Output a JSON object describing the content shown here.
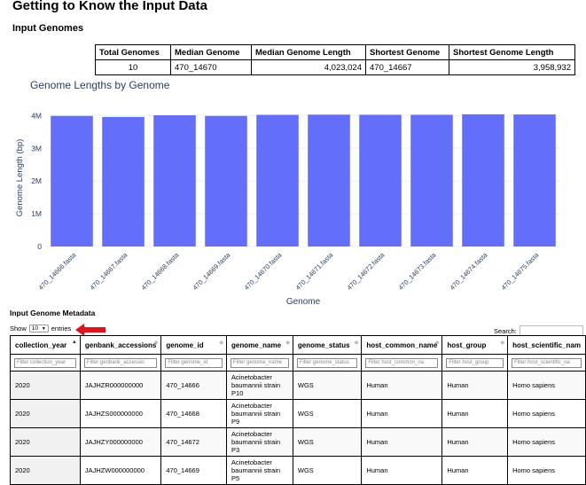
{
  "page": {
    "title": "Getting to Know the Input Data",
    "input_genomes_heading": "Input Genomes",
    "metadata_heading": "Input Genome Metadata"
  },
  "summary": {
    "headers": [
      "Total Genomes",
      "Median Genome",
      "Median Genome Length",
      "Shortest Genome",
      "Shortest Genome Length"
    ],
    "values": [
      "10",
      "470_14670",
      "4,023,024",
      "470_14667",
      "3,958,932"
    ]
  },
  "chart_data": {
    "type": "bar",
    "title": "Genome Lengths by Genome",
    "xlabel": "Genome",
    "ylabel": "Genome Length (bp)",
    "categories": [
      "470_14666.fasta",
      "470_14667.fasta",
      "470_14668.fasta",
      "470_14669.fasta",
      "470_14670.fasta",
      "470_14671.fasta",
      "470_14672.fasta",
      "470_14673.fasta",
      "470_14674.fasta",
      "470_14675.fasta"
    ],
    "values": [
      3990000,
      3958932,
      4010000,
      3990000,
      4023024,
      4030000,
      4025000,
      4025000,
      4040000,
      4035000
    ],
    "ylim": [
      0,
      4200000
    ],
    "yticks": [
      0,
      1000000,
      2000000,
      3000000,
      4000000
    ],
    "ytick_labels": [
      "0",
      "1M",
      "2M",
      "3M",
      "4M"
    ],
    "bar_color": "#636efa",
    "grid": true
  },
  "table_controls": {
    "show_label": "Show",
    "entries_value": "10",
    "entries_label": "entries",
    "search_label": "Search:"
  },
  "metadata": {
    "columns": [
      "collection_year",
      "genbank_accessions",
      "genome_id",
      "genome_name",
      "genome_status",
      "host_common_name",
      "host_group",
      "host_scientific_nam"
    ],
    "filters": [
      "Filter collection_year",
      "Filter genbank_accessio",
      "Filter genome_id",
      "Filter genome_name",
      "Filter genome_status",
      "Filter host_common_na",
      "Filter host_group",
      "Filter host_scientific_na"
    ],
    "rows": [
      [
        "2020",
        "JAJHZR000000000",
        "470_14666",
        "Acinetobacter baumannii strain P10",
        "WGS",
        "Human",
        "Human",
        "Homo sapiens"
      ],
      [
        "2020",
        "JAJHZS000000000",
        "470_14668",
        "Acinetobacter baumannii strain P9",
        "WGS",
        "Human",
        "Human",
        "Homo sapiens"
      ],
      [
        "2020",
        "JAJHZY000000000",
        "470_14672",
        "Acinetobacter baumannii strain P3",
        "WGS",
        "Human",
        "Human",
        "Homo sapiens"
      ],
      [
        "2020",
        "JAJHZW000000000",
        "470_14669",
        "Acinetobacter baumannii strain P5",
        "WGS",
        "Human",
        "Human",
        "Homo sapiens"
      ]
    ]
  },
  "colors": {
    "accent_arrow": "#e3121b",
    "axis_text": "#2a3f5f",
    "grid": "#ebf0f8"
  }
}
